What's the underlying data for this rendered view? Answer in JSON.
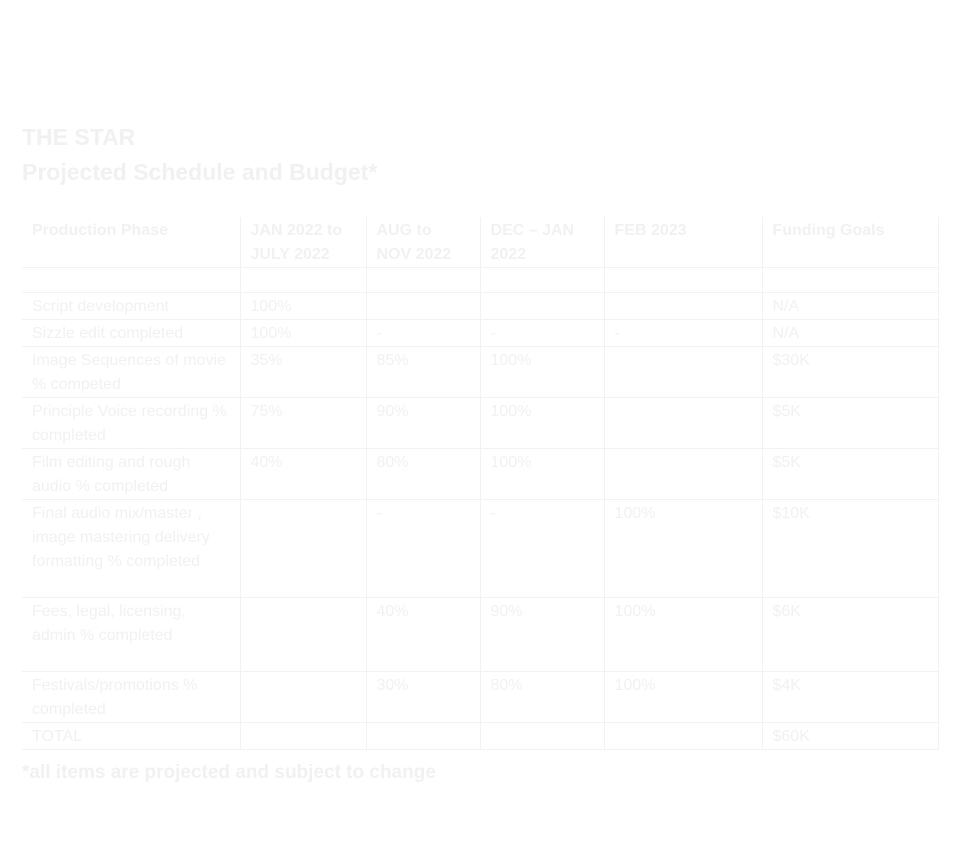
{
  "title": "THE STAR",
  "subtitle": "Projected Schedule and Budget*",
  "table": {
    "header": [
      "Production Phase",
      "JAN 2022 to JULY 2022",
      "AUG to NOV 2022",
      "DEC – JAN 2022",
      "FEB 2023",
      "Funding Goals"
    ],
    "rows": [
      [
        "Script development",
        "100%",
        null,
        null,
        null,
        "N/A"
      ],
      [
        "Sizzle edit completed",
        "100%",
        "-",
        "-",
        "-",
        "N/A"
      ],
      [
        "Image Sequences of movie % competed",
        "35%",
        "85%",
        "100%",
        null,
        "$30K"
      ],
      [
        "Principle Voice recording % completed",
        "75%",
        "90%",
        "100%",
        null,
        "$5K"
      ],
      [
        "Film editing and rough audio % completed",
        "40%",
        "80%",
        "100%",
        null,
        "$5K"
      ],
      [
        "Final audio mix/master , image mastering delivery formatting % completed",
        null,
        "-",
        "-",
        "100%",
        "$10K"
      ],
      [
        "Fees, legal, licensing, admin % completed",
        null,
        "40%",
        "90%",
        "100%",
        "$6K"
      ],
      [
        "Festivals/promotions % completed",
        null,
        "30%",
        "80%",
        "100%",
        "$4K"
      ],
      [
        "TOTAL",
        null,
        null,
        null,
        null,
        "$60K"
      ]
    ]
  },
  "footnote": "*all items are projected and subject to change"
}
